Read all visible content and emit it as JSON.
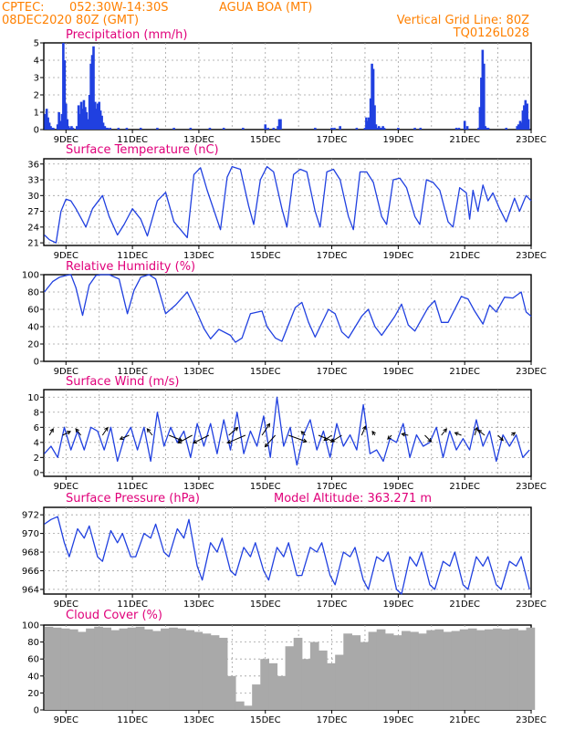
{
  "header": {
    "source": "CPTEC:",
    "coords": "052:30W-14:30S",
    "location": "AGUA BOA (MT)",
    "run": "08DEC2020 80Z (GMT)",
    "grid_note": "Vertical Grid Line: 80Z",
    "code": "TQ0126L028"
  },
  "colors": {
    "series": "#2040e0",
    "cloud": "#a9a9a9",
    "title": "#e0007a",
    "header": "#ff8000"
  },
  "x_axis": {
    "day_start": 8.333,
    "day_end": 23.0,
    "ticks": [
      {
        "day": 9,
        "label": "9DEC"
      },
      {
        "day": 11,
        "label": "11DEC"
      },
      {
        "day": 13,
        "label": "13DEC"
      },
      {
        "day": 15,
        "label": "15DEC"
      },
      {
        "day": 17,
        "label": "17DEC"
      },
      {
        "day": 19,
        "label": "19DEC"
      },
      {
        "day": 21,
        "label": "21DEC"
      },
      {
        "day": 23,
        "label": "23DEC"
      }
    ]
  },
  "panels": [
    {
      "id": "precip",
      "title": "Precipitation (mm/h)",
      "extra": ""
    },
    {
      "id": "temp",
      "title": "Surface Temperature (nC)",
      "extra": ""
    },
    {
      "id": "rh",
      "title": "Relative Humidity (%)",
      "extra": ""
    },
    {
      "id": "wind",
      "title": "Surface Wind (m/s)",
      "extra": ""
    },
    {
      "id": "pres",
      "title": "Surface Pressure (hPa)",
      "extra": "Model Altitude: 363.271 m"
    },
    {
      "id": "cloud",
      "title": "Cloud Cover (%)",
      "extra": ""
    }
  ],
  "chart_data": [
    {
      "id": "precip",
      "type": "bar",
      "title": "Precipitation (mm/h)",
      "ylim": [
        0,
        5
      ],
      "yticks": [
        0,
        1,
        2,
        3,
        4,
        5
      ],
      "x": [
        8.38,
        8.42,
        8.46,
        8.5,
        8.54,
        8.58,
        8.62,
        8.75,
        8.79,
        8.83,
        8.88,
        8.92,
        8.96,
        9.0,
        9.04,
        9.08,
        9.12,
        9.17,
        9.21,
        9.33,
        9.38,
        9.42,
        9.46,
        9.5,
        9.54,
        9.58,
        9.62,
        9.67,
        9.71,
        9.75,
        9.79,
        9.83,
        9.88,
        9.92,
        9.96,
        10.0,
        10.04,
        10.08,
        10.12,
        10.17,
        10.21,
        10.25,
        10.33,
        10.58,
        10.83,
        11.25,
        11.75,
        12.25,
        12.75,
        13.33,
        13.75,
        14.33,
        15.0,
        15.08,
        15.25,
        15.38,
        15.42,
        15.46,
        16.5,
        17.0,
        17.08,
        17.25,
        17.75,
        18.0,
        18.04,
        18.08,
        18.12,
        18.17,
        18.21,
        18.25,
        18.29,
        18.33,
        18.38,
        18.42,
        18.46,
        18.5,
        18.54,
        18.58,
        19.0,
        19.5,
        19.67,
        20.75,
        20.83,
        21.0,
        21.08,
        21.42,
        21.46,
        21.5,
        21.54,
        21.58,
        21.62,
        21.67,
        21.71,
        22.25,
        22.58,
        22.62,
        22.67,
        22.71,
        22.75,
        22.79,
        22.83,
        22.88,
        22.92
      ],
      "values": [
        0.9,
        1.2,
        0.7,
        0.4,
        0.2,
        0.1,
        0.1,
        0.3,
        1.0,
        0.5,
        0.9,
        5.0,
        4.0,
        1.5,
        0.6,
        0.2,
        0.1,
        0.2,
        0.1,
        0.2,
        1.4,
        0.9,
        1.6,
        1.2,
        1.7,
        1.3,
        1.0,
        0.6,
        2.0,
        3.8,
        4.3,
        4.8,
        1.6,
        1.2,
        1.5,
        1.6,
        1.1,
        0.8,
        0.4,
        0.2,
        0.1,
        0.1,
        0.1,
        0.1,
        0.1,
        0.1,
        0.1,
        0.1,
        0.1,
        0.1,
        0.1,
        0.1,
        0.3,
        0.1,
        0.1,
        0.2,
        0.6,
        0.6,
        0.1,
        0.1,
        0.1,
        0.2,
        0.1,
        0.1,
        0.7,
        0.5,
        0.7,
        1.8,
        3.8,
        3.5,
        1.4,
        0.3,
        0.1,
        0.2,
        0.1,
        0.1,
        0.2,
        0.1,
        0.1,
        0.1,
        0.1,
        0.1,
        0.1,
        0.5,
        0.2,
        0.1,
        1.3,
        3.0,
        4.6,
        3.8,
        0.2,
        0.1,
        0.1,
        0.1,
        0.2,
        0.3,
        0.5,
        0.4,
        1.1,
        1.4,
        1.7,
        1.5,
        0.6
      ]
    },
    {
      "id": "temp",
      "type": "line",
      "title": "Surface Temperature (nC)",
      "ylim": [
        20.5,
        37
      ],
      "yticks": [
        21,
        24,
        27,
        30,
        33,
        36
      ],
      "x": [
        8.35,
        8.5,
        8.7,
        8.85,
        9.0,
        9.15,
        9.3,
        9.6,
        9.8,
        10.1,
        10.3,
        10.55,
        10.75,
        11.0,
        11.25,
        11.45,
        11.75,
        12.0,
        12.25,
        12.65,
        12.85,
        13.05,
        13.25,
        13.65,
        13.85,
        14.0,
        14.25,
        14.5,
        14.65,
        14.85,
        15.05,
        15.25,
        15.5,
        15.65,
        15.85,
        16.05,
        16.25,
        16.5,
        16.65,
        16.85,
        17.05,
        17.25,
        17.5,
        17.65,
        17.85,
        18.05,
        18.25,
        18.5,
        18.65,
        18.85,
        19.05,
        19.25,
        19.5,
        19.65,
        19.85,
        20.05,
        20.25,
        20.5,
        20.65,
        20.85,
        21.05,
        21.15,
        21.25,
        21.4,
        21.55,
        21.7,
        21.85,
        22.05,
        22.25,
        22.5,
        22.65,
        22.85,
        23.0
      ],
      "values": [
        22.5,
        21.6,
        21.0,
        27.0,
        29.3,
        29.0,
        27.5,
        24.0,
        27.5,
        30.0,
        26.0,
        22.5,
        24.5,
        27.5,
        25.5,
        22.3,
        29.0,
        30.6,
        25.0,
        22.0,
        34.0,
        35.3,
        31.0,
        23.5,
        33.5,
        35.5,
        35.0,
        28.0,
        24.5,
        33.0,
        35.5,
        34.5,
        27.5,
        24.0,
        34.0,
        35.0,
        34.5,
        27.0,
        24.0,
        34.5,
        35.0,
        33.0,
        26.0,
        23.5,
        34.5,
        34.5,
        32.5,
        26.0,
        24.5,
        33.0,
        33.3,
        31.5,
        26.0,
        24.5,
        33.0,
        32.5,
        31.0,
        25.0,
        24.0,
        31.5,
        30.5,
        25.5,
        31.0,
        27.0,
        32.0,
        29.0,
        30.5,
        27.5,
        25.0,
        29.5,
        27.0,
        30.0,
        29.0
      ]
    },
    {
      "id": "rh",
      "type": "line",
      "title": "Relative Humidity (%)",
      "ylim": [
        0,
        100
      ],
      "yticks": [
        0,
        20,
        40,
        60,
        80,
        100
      ],
      "x": [
        8.35,
        8.6,
        8.8,
        9.0,
        9.15,
        9.3,
        9.5,
        9.7,
        9.9,
        10.05,
        10.3,
        10.6,
        10.85,
        11.05,
        11.25,
        11.5,
        11.7,
        12.0,
        12.3,
        12.65,
        12.9,
        13.15,
        13.35,
        13.6,
        13.95,
        14.1,
        14.3,
        14.55,
        14.9,
        15.05,
        15.3,
        15.5,
        15.9,
        16.1,
        16.3,
        16.5,
        16.9,
        17.1,
        17.3,
        17.5,
        17.9,
        18.1,
        18.3,
        18.5,
        18.9,
        19.1,
        19.3,
        19.5,
        19.9,
        20.1,
        20.3,
        20.5,
        20.9,
        21.1,
        21.3,
        21.55,
        21.75,
        21.95,
        22.2,
        22.45,
        22.7,
        22.85,
        23.0
      ],
      "values": [
        80,
        92,
        97,
        99,
        100,
        85,
        53,
        88,
        99,
        100,
        100,
        95,
        55,
        82,
        97,
        100,
        95,
        55,
        65,
        80,
        60,
        38,
        26,
        37,
        30,
        22,
        27,
        55,
        58,
        40,
        27,
        23,
        62,
        68,
        45,
        28,
        60,
        55,
        34,
        27,
        52,
        60,
        40,
        30,
        52,
        66,
        42,
        35,
        62,
        70,
        45,
        45,
        75,
        72,
        58,
        43,
        65,
        57,
        74,
        73,
        80,
        57,
        52
      ]
    },
    {
      "id": "wind",
      "type": "line",
      "title": "Surface Wind (m/s)",
      "ylim": [
        -0.5,
        11
      ],
      "yticks": [
        0,
        2,
        4,
        6,
        8,
        10
      ],
      "x": [
        8.35,
        8.55,
        8.75,
        8.95,
        9.15,
        9.35,
        9.55,
        9.75,
        9.95,
        10.15,
        10.35,
        10.55,
        10.75,
        10.95,
        11.15,
        11.35,
        11.55,
        11.75,
        11.95,
        12.15,
        12.35,
        12.55,
        12.75,
        12.95,
        13.15,
        13.35,
        13.55,
        13.75,
        13.95,
        14.15,
        14.35,
        14.55,
        14.75,
        14.95,
        15.15,
        15.35,
        15.55,
        15.75,
        15.95,
        16.15,
        16.35,
        16.55,
        16.75,
        16.95,
        17.15,
        17.35,
        17.55,
        17.75,
        17.95,
        18.15,
        18.35,
        18.55,
        18.75,
        18.95,
        19.15,
        19.35,
        19.55,
        19.75,
        19.95,
        20.15,
        20.35,
        20.55,
        20.75,
        20.95,
        21.15,
        21.35,
        21.55,
        21.75,
        21.95,
        22.15,
        22.35,
        22.55,
        22.75,
        22.95
      ],
      "values": [
        2.5,
        3.5,
        2.0,
        6.0,
        3.0,
        5.5,
        3.0,
        6.0,
        5.5,
        3.0,
        6.0,
        1.5,
        4.5,
        6.0,
        3.0,
        6.0,
        1.5,
        8.0,
        3.5,
        6.0,
        4.0,
        5.5,
        2.0,
        6.5,
        3.5,
        6.5,
        2.5,
        7.0,
        3.0,
        8.0,
        2.5,
        5.5,
        3.5,
        7.5,
        2.0,
        10.0,
        3.5,
        6.0,
        1.0,
        5.0,
        7.0,
        3.0,
        5.5,
        2.0,
        6.5,
        3.5,
        5.0,
        3.0,
        9.0,
        2.5,
        3.0,
        1.5,
        4.5,
        4.0,
        6.5,
        2.0,
        5.0,
        3.5,
        4.0,
        6.0,
        2.0,
        5.5,
        3.0,
        4.5,
        3.0,
        7.0,
        3.5,
        5.5,
        1.5,
        5.0,
        3.5,
        5.0,
        2.0,
        3.0
      ],
      "arrows": {
        "x": [
          8.5,
          8.9,
          9.45,
          10.1,
          10.9,
          11.6,
          12.1,
          12.8,
          13.3,
          13.9,
          14.4,
          14.9,
          15.3,
          15.7,
          16.2,
          16.6,
          17.0,
          17.3,
          17.9,
          18.3,
          18.8,
          19.3,
          19.8,
          20.3,
          20.9,
          21.3,
          21.6,
          22.0,
          22.4
        ],
        "u": [
          0.3,
          0.6,
          -0.4,
          0.4,
          -0.7,
          -0.4,
          1.0,
          -1.1,
          -1.2,
          0.7,
          -1.4,
          0.6,
          -0.8,
          1.4,
          -0.3,
          1.2,
          -0.6,
          -0.8,
          0.3,
          -0.2,
          -0.3,
          -0.5,
          0.5,
          0.4,
          -0.5,
          0.2,
          -0.5,
          0.4,
          0.3
        ],
        "v": [
          0.5,
          0.3,
          0.5,
          0.6,
          -0.3,
          0.5,
          -0.4,
          -0.6,
          -0.6,
          0.6,
          -0.6,
          0.9,
          -0.9,
          -0.5,
          0.3,
          -0.5,
          -0.4,
          -0.5,
          0.7,
          0.3,
          -0.3,
          0.1,
          -0.5,
          0.5,
          0.2,
          0.6,
          0.4,
          -0.4,
          0.2
        ]
      }
    },
    {
      "id": "pres",
      "type": "line",
      "title": "Surface Pressure (hPa)",
      "annotation": "Model Altitude: 363.271 m",
      "ylim": [
        963.5,
        972.8
      ],
      "yticks": [
        964,
        966,
        968,
        970,
        972
      ],
      "x": [
        8.35,
        8.55,
        8.75,
        8.95,
        9.1,
        9.35,
        9.55,
        9.7,
        9.95,
        10.1,
        10.35,
        10.55,
        10.7,
        10.95,
        11.1,
        11.35,
        11.55,
        11.7,
        11.95,
        12.1,
        12.35,
        12.55,
        12.7,
        12.95,
        13.1,
        13.35,
        13.55,
        13.7,
        13.95,
        14.1,
        14.35,
        14.55,
        14.7,
        14.95,
        15.1,
        15.35,
        15.55,
        15.7,
        15.95,
        16.1,
        16.35,
        16.55,
        16.7,
        16.95,
        17.1,
        17.35,
        17.55,
        17.7,
        17.95,
        18.1,
        18.35,
        18.55,
        18.7,
        18.95,
        19.1,
        19.35,
        19.55,
        19.7,
        19.95,
        20.1,
        20.35,
        20.55,
        20.7,
        20.95,
        21.1,
        21.35,
        21.55,
        21.7,
        21.95,
        22.1,
        22.35,
        22.55,
        22.7,
        22.95
      ],
      "values": [
        971.0,
        971.5,
        971.8,
        969.0,
        967.5,
        970.5,
        969.5,
        970.8,
        967.5,
        967.0,
        970.3,
        969.0,
        970.0,
        967.5,
        967.5,
        970.0,
        969.5,
        971.0,
        968.0,
        967.5,
        970.5,
        969.5,
        971.5,
        966.5,
        965.0,
        969.0,
        968.0,
        969.5,
        966.0,
        965.5,
        968.5,
        967.5,
        969.0,
        966.0,
        965.0,
        968.5,
        967.5,
        969.0,
        965.5,
        965.5,
        968.5,
        968.0,
        969.0,
        965.5,
        964.5,
        968.0,
        967.5,
        968.5,
        965.0,
        964.0,
        967.5,
        967.0,
        968.0,
        964.0,
        963.5,
        967.5,
        966.5,
        968.0,
        964.5,
        964.0,
        967.0,
        966.5,
        968.0,
        964.5,
        964.0,
        967.5,
        966.5,
        967.5,
        964.5,
        964.0,
        967.0,
        966.5,
        967.5,
        964.0
      ]
    },
    {
      "id": "cloud",
      "type": "bar",
      "title": "Cloud Cover (%)",
      "ylim": [
        0,
        100
      ],
      "yticks": [
        0,
        20,
        40,
        60,
        80,
        100
      ],
      "x": [
        8.35,
        8.6,
        8.85,
        9.1,
        9.35,
        9.6,
        9.85,
        10.1,
        10.35,
        10.6,
        10.85,
        11.1,
        11.35,
        11.6,
        11.85,
        12.1,
        12.35,
        12.6,
        12.85,
        13.1,
        13.35,
        13.6,
        13.85,
        14.1,
        14.35,
        14.6,
        14.85,
        15.1,
        15.35,
        15.6,
        15.85,
        16.1,
        16.35,
        16.6,
        16.85,
        17.1,
        17.35,
        17.6,
        17.85,
        18.1,
        18.35,
        18.6,
        18.85,
        19.1,
        19.35,
        19.6,
        19.85,
        20.1,
        20.35,
        20.6,
        20.85,
        21.1,
        21.35,
        21.6,
        21.85,
        22.1,
        22.35,
        22.6,
        22.85
      ],
      "values": [
        98,
        97,
        96,
        95,
        92,
        96,
        98,
        97,
        94,
        96,
        97,
        98,
        95,
        93,
        96,
        97,
        96,
        94,
        92,
        90,
        88,
        85,
        40,
        10,
        5,
        30,
        60,
        55,
        40,
        75,
        85,
        60,
        80,
        70,
        55,
        65,
        90,
        88,
        80,
        92,
        95,
        90,
        88,
        93,
        92,
        90,
        94,
        95,
        92,
        93,
        95,
        96,
        94,
        95,
        96,
        95,
        96,
        94,
        97
      ]
    }
  ]
}
